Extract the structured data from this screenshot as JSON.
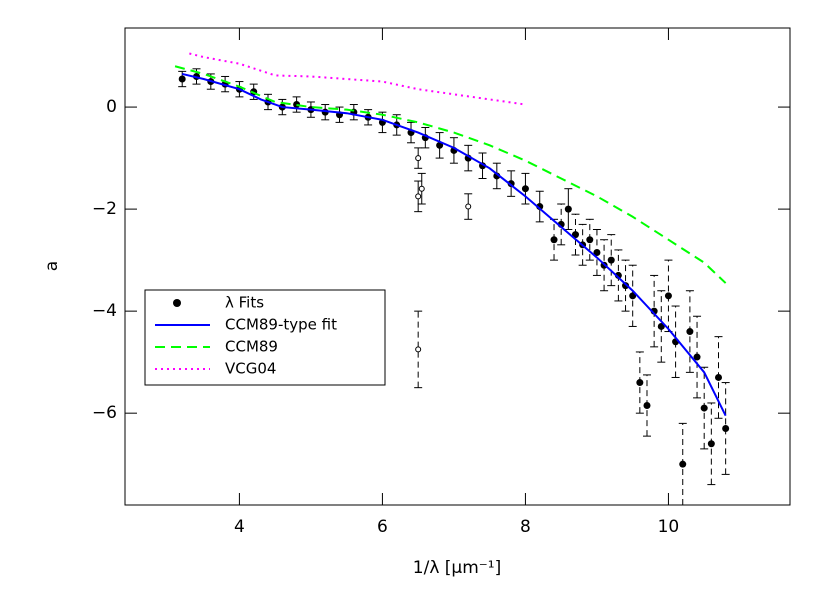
{
  "chart_data": {
    "type": "scatter",
    "xlabel": "1/λ [μm⁻¹]",
    "ylabel": "a",
    "xlim": [
      2.4,
      11.7
    ],
    "ylim": [
      -7.8,
      1.55
    ],
    "xticks": [
      4,
      6,
      8,
      10
    ],
    "yticks": [
      -6,
      -4,
      -2,
      0
    ],
    "legend": "left",
    "series": [
      {
        "name": "λ Fits",
        "color": "#000000",
        "style": "points",
        "x": [
          3.2,
          3.4,
          3.6,
          3.8,
          4.0,
          4.2,
          4.4,
          4.6,
          4.8,
          5.0,
          5.2,
          5.4,
          5.6,
          5.8,
          6.0,
          6.2,
          6.4,
          6.6,
          6.8,
          7.0,
          7.2,
          7.4,
          7.6,
          7.8,
          8.0,
          8.2,
          8.4,
          8.5,
          8.6,
          8.7,
          8.8,
          8.9,
          9.0,
          9.1,
          9.2,
          9.3,
          9.4,
          9.5,
          9.6,
          9.7,
          9.8,
          9.9,
          10.0,
          10.1,
          10.2,
          10.3,
          10.4,
          10.5,
          10.6,
          10.7,
          10.8
        ],
        "values": [
          0.55,
          0.6,
          0.5,
          0.45,
          0.35,
          0.3,
          0.1,
          0.0,
          0.05,
          -0.05,
          -0.1,
          -0.15,
          -0.1,
          -0.2,
          -0.3,
          -0.35,
          -0.5,
          -0.6,
          -0.75,
          -0.85,
          -1.0,
          -1.15,
          -1.35,
          -1.5,
          -1.6,
          -1.95,
          -2.6,
          -2.3,
          -2.0,
          -2.5,
          -2.7,
          -2.6,
          -2.85,
          -3.1,
          -3.0,
          -3.3,
          -3.5,
          -3.7,
          -5.4,
          -5.85,
          -4.0,
          -4.3,
          -3.7,
          -4.6,
          -7.0,
          -4.4,
          -4.9,
          -5.9,
          -6.6,
          -5.3,
          -6.3
        ],
        "errors": [
          0.15,
          0.15,
          0.15,
          0.15,
          0.15,
          0.15,
          0.15,
          0.15,
          0.15,
          0.15,
          0.15,
          0.15,
          0.15,
          0.15,
          0.2,
          0.2,
          0.2,
          0.2,
          0.25,
          0.25,
          0.25,
          0.25,
          0.25,
          0.25,
          0.3,
          0.3,
          0.4,
          0.4,
          0.4,
          0.4,
          0.4,
          0.4,
          0.45,
          0.5,
          0.5,
          0.5,
          0.5,
          0.6,
          0.6,
          0.6,
          0.7,
          0.7,
          0.7,
          0.7,
          0.8,
          0.8,
          0.8,
          0.8,
          0.8,
          0.8,
          0.9
        ]
      },
      {
        "name": "CCM89-type fit",
        "color": "#0000ff",
        "style": "solid",
        "x": [
          3.2,
          3.5,
          4.0,
          4.3,
          4.6,
          5.0,
          5.5,
          6.0,
          6.5,
          7.0,
          7.5,
          8.0,
          8.5,
          9.0,
          9.5,
          10.0,
          10.5,
          10.8
        ],
        "values": [
          0.65,
          0.55,
          0.35,
          0.15,
          0.0,
          -0.05,
          -0.12,
          -0.25,
          -0.5,
          -0.8,
          -1.2,
          -1.75,
          -2.35,
          -2.95,
          -3.6,
          -4.35,
          -5.2,
          -6.05
        ]
      },
      {
        "name": "CCM89",
        "color": "#00ff00",
        "style": "dashed",
        "x": [
          3.1,
          3.5,
          4.0,
          4.5,
          5.0,
          5.5,
          6.0,
          6.5,
          7.0,
          7.5,
          8.0,
          8.5,
          9.0,
          9.5,
          10.0,
          10.5,
          10.8
        ],
        "values": [
          0.8,
          0.65,
          0.4,
          0.1,
          0.0,
          -0.05,
          -0.15,
          -0.3,
          -0.5,
          -0.75,
          -1.05,
          -1.4,
          -1.75,
          -2.15,
          -2.6,
          -3.05,
          -3.45
        ]
      },
      {
        "name": "VCG04",
        "color": "#ff00ff",
        "style": "dotted",
        "x": [
          3.3,
          3.5,
          4.0,
          4.5,
          5.0,
          5.5,
          6.0,
          6.5,
          7.0,
          7.5,
          8.0
        ],
        "values": [
          1.05,
          0.98,
          0.85,
          0.62,
          0.6,
          0.55,
          0.5,
          0.35,
          0.25,
          0.15,
          0.05
        ]
      }
    ],
    "points_open": {
      "x": [
        6.5,
        6.5,
        6.55,
        7.2,
        6.5
      ],
      "values": [
        -1.0,
        -1.75,
        -1.6,
        -1.95,
        -4.75
      ],
      "errors": [
        0.2,
        0.3,
        0.3,
        0.25,
        0.75
      ]
    }
  }
}
